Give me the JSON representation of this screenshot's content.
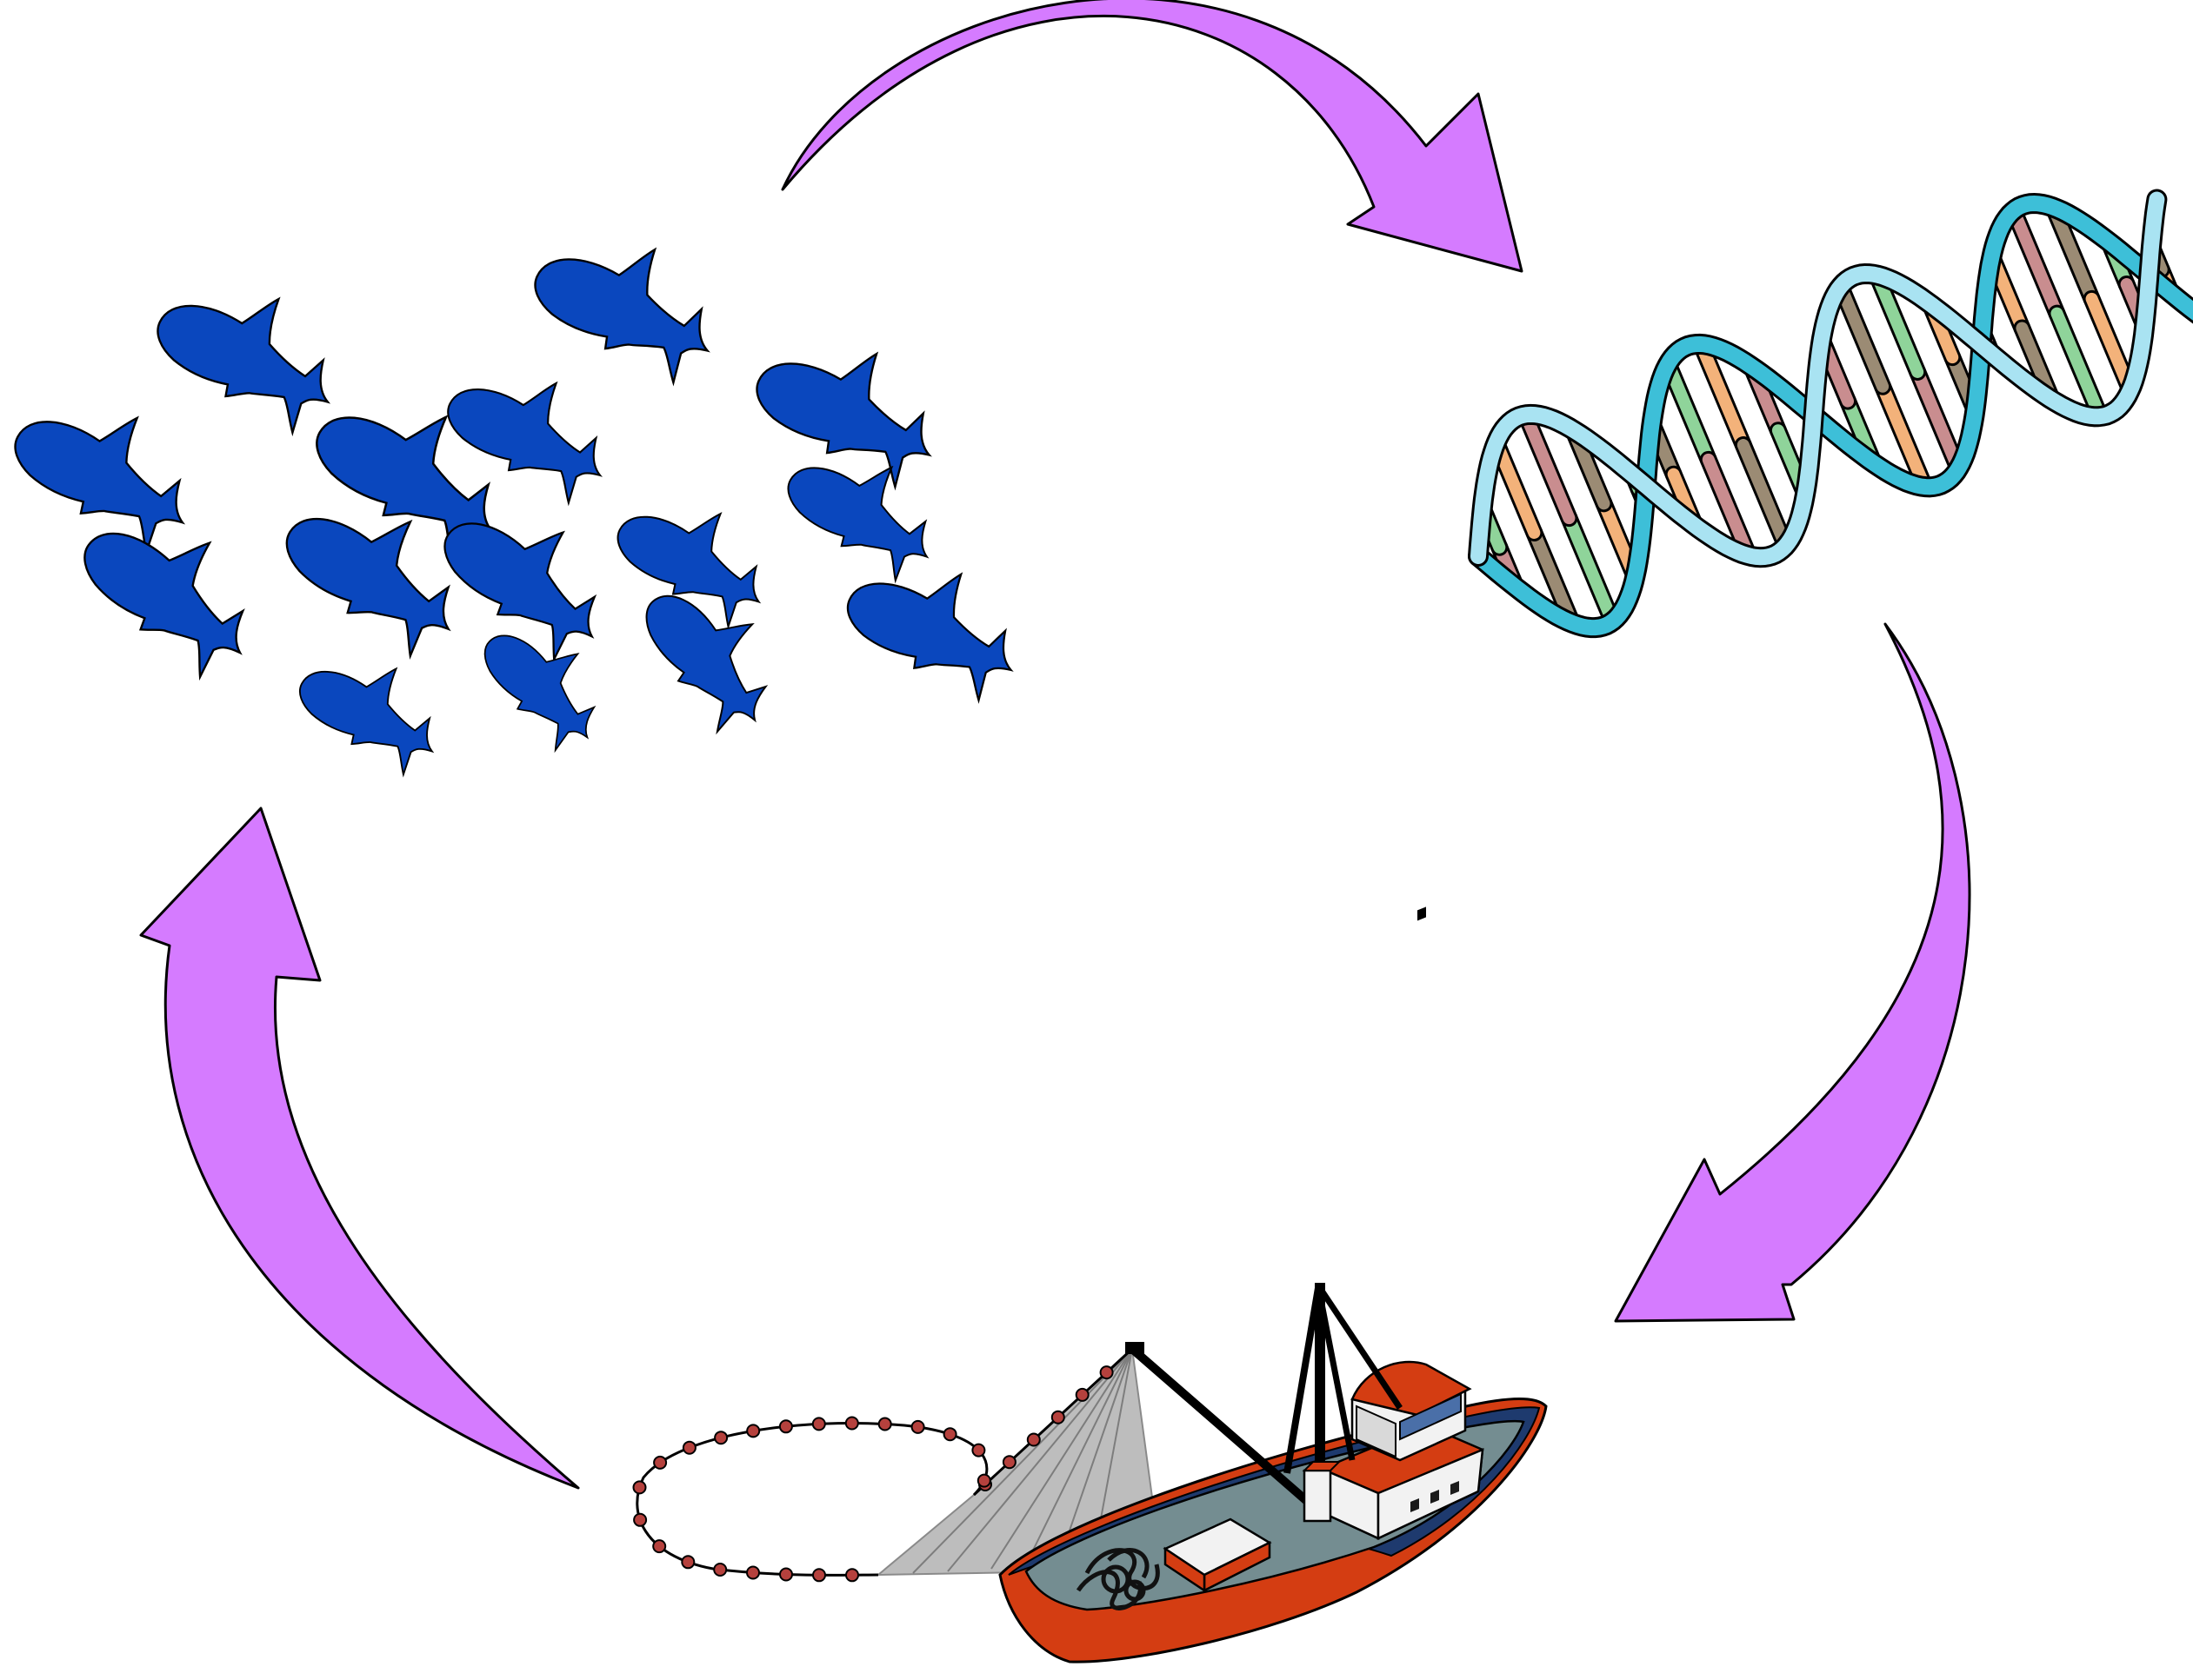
{
  "colors": {
    "background": "#ffffff",
    "arrow_fill": "#d57bff",
    "outline": "#000000",
    "fish_fill": "#0a47be",
    "dna_backbone_a": "#3dbfd8",
    "dna_backbone_b": "#a9e3f2",
    "base_colors": [
      "#c98d8f",
      "#9b8b74",
      "#8fd49a",
      "#f3b27a",
      "#ffffff"
    ],
    "hull_red": "#d43d12",
    "hull_navy": "#1e3a6e",
    "deck_gray": "#748d91",
    "cabin_white": "#f2f2f2",
    "net_gray": "#a6a6a6",
    "float_red": "#b5413d"
  },
  "diagram": {
    "nodes": [
      {
        "id": "fish-school",
        "icon": "fish-school-icon"
      },
      {
        "id": "dna",
        "icon": "dna-helix-icon"
      },
      {
        "id": "fishing-boat",
        "icon": "fishing-boat-icon"
      }
    ],
    "edges": [
      {
        "from": "fish-school",
        "to": "dna",
        "icon": "curved-arrow-icon"
      },
      {
        "from": "dna",
        "to": "fishing-boat",
        "icon": "curved-arrow-icon"
      },
      {
        "from": "fishing-boat",
        "to": "fish-school",
        "icon": "curved-arrow-icon"
      }
    ],
    "fish_count": 15,
    "dna_base_pairs": 20
  }
}
